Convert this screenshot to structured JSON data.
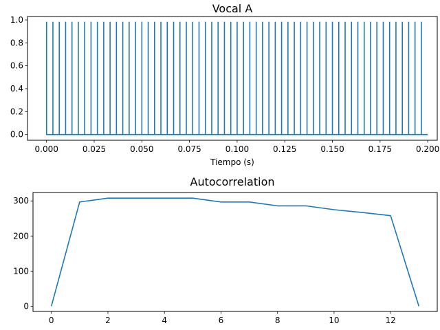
{
  "chart_data": [
    {
      "type": "line",
      "title": "Vocal A",
      "xlabel": "Tiempo (s)",
      "ylabel": "",
      "xlim": [
        -0.01,
        0.205
      ],
      "ylim": [
        -0.05,
        1.03
      ],
      "xticks": [
        0.0,
        0.025,
        0.05,
        0.075,
        0.1,
        0.125,
        0.15,
        0.175,
        0.2
      ],
      "xtick_labels": [
        "0.000",
        "0.025",
        "0.050",
        "0.075",
        "0.100",
        "0.125",
        "0.150",
        "0.175",
        "0.200"
      ],
      "yticks": [
        0.0,
        0.2,
        0.4,
        0.6,
        0.8,
        1.0
      ],
      "ytick_labels": [
        "0.0",
        "0.2",
        "0.4",
        "0.6",
        "0.8",
        "1.0"
      ],
      "grid": false,
      "series": [
        {
          "impulse_times": [
            0.0,
            0.00333,
            0.00667,
            0.01,
            0.01333,
            0.01667,
            0.02,
            0.02333,
            0.02667,
            0.03,
            0.03333,
            0.03667,
            0.04,
            0.04333,
            0.04667,
            0.05,
            0.05333,
            0.05667,
            0.06,
            0.06333,
            0.06667,
            0.07,
            0.07333,
            0.07667,
            0.08,
            0.08333,
            0.08667,
            0.09,
            0.09333,
            0.09667,
            0.1,
            0.10333,
            0.10667,
            0.11,
            0.11333,
            0.11667,
            0.12,
            0.12333,
            0.12667,
            0.13,
            0.13333,
            0.13667,
            0.14,
            0.14333,
            0.14667,
            0.15,
            0.15333,
            0.15667,
            0.16,
            0.16333,
            0.16667,
            0.17,
            0.17333,
            0.17667,
            0.18,
            0.18333,
            0.18667,
            0.19,
            0.19333,
            0.19667
          ],
          "impulse_height": 0.98,
          "baseline": 0.0,
          "x_end": 0.2
        }
      ]
    },
    {
      "type": "line",
      "title": "Autocorrelation",
      "xlabel": "",
      "ylabel": "",
      "xlim": [
        -0.65,
        13.65
      ],
      "ylim": [
        -15,
        324
      ],
      "xticks": [
        0,
        2,
        4,
        6,
        8,
        10,
        12
      ],
      "xtick_labels": [
        "0",
        "2",
        "4",
        "6",
        "8",
        "10",
        "12"
      ],
      "yticks": [
        0,
        100,
        200,
        300
      ],
      "ytick_labels": [
        "0",
        "100",
        "200",
        "300"
      ],
      "grid": false,
      "series": [
        {
          "x": [
            0,
            1,
            2,
            3,
            4,
            5,
            6,
            7,
            8,
            9,
            10,
            11,
            12,
            13
          ],
          "y": [
            0,
            297,
            308,
            308,
            308,
            308,
            297,
            297,
            286,
            286,
            275,
            267,
            258,
            0
          ]
        }
      ]
    }
  ]
}
